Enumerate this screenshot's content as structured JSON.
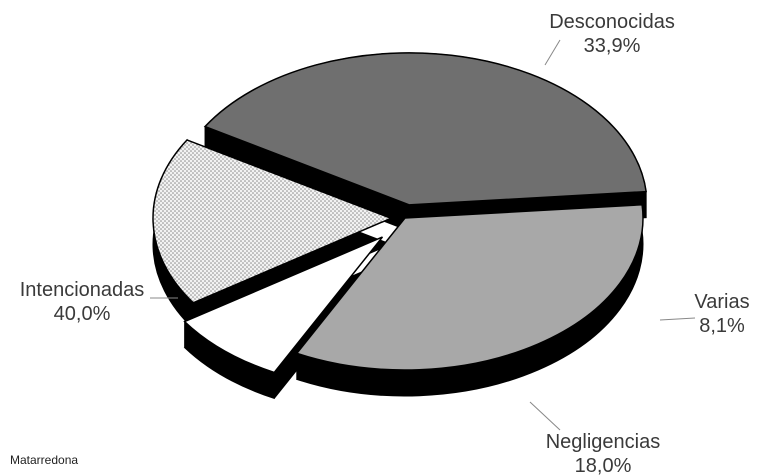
{
  "chart_data": {
    "type": "pie",
    "title": "",
    "credit": "Matarredona",
    "slices": [
      {
        "name": "Desconocidas",
        "value": 33.9,
        "value_label": "33,9%",
        "color": "#a8a8a8",
        "exploded": false,
        "pattern": "solid"
      },
      {
        "name": "Varias",
        "value": 8.1,
        "value_label": "8,1%",
        "color": "#ffffff",
        "exploded": true,
        "pattern": "solid"
      },
      {
        "name": "Negligencias",
        "value": 18.0,
        "value_label": "18,0%",
        "color": "#efefef",
        "exploded": true,
        "pattern": "dotted"
      },
      {
        "name": "Intencionadas",
        "value": 40.0,
        "value_label": "40,0%",
        "color": "#6f6f6f",
        "exploded": true,
        "pattern": "solid"
      }
    ],
    "style": "3d-exploded",
    "legend": "none",
    "colors": {
      "side": "#000000",
      "outline": "#000000",
      "label_text": "#3a3a3a",
      "leader_line": "#888888"
    }
  }
}
